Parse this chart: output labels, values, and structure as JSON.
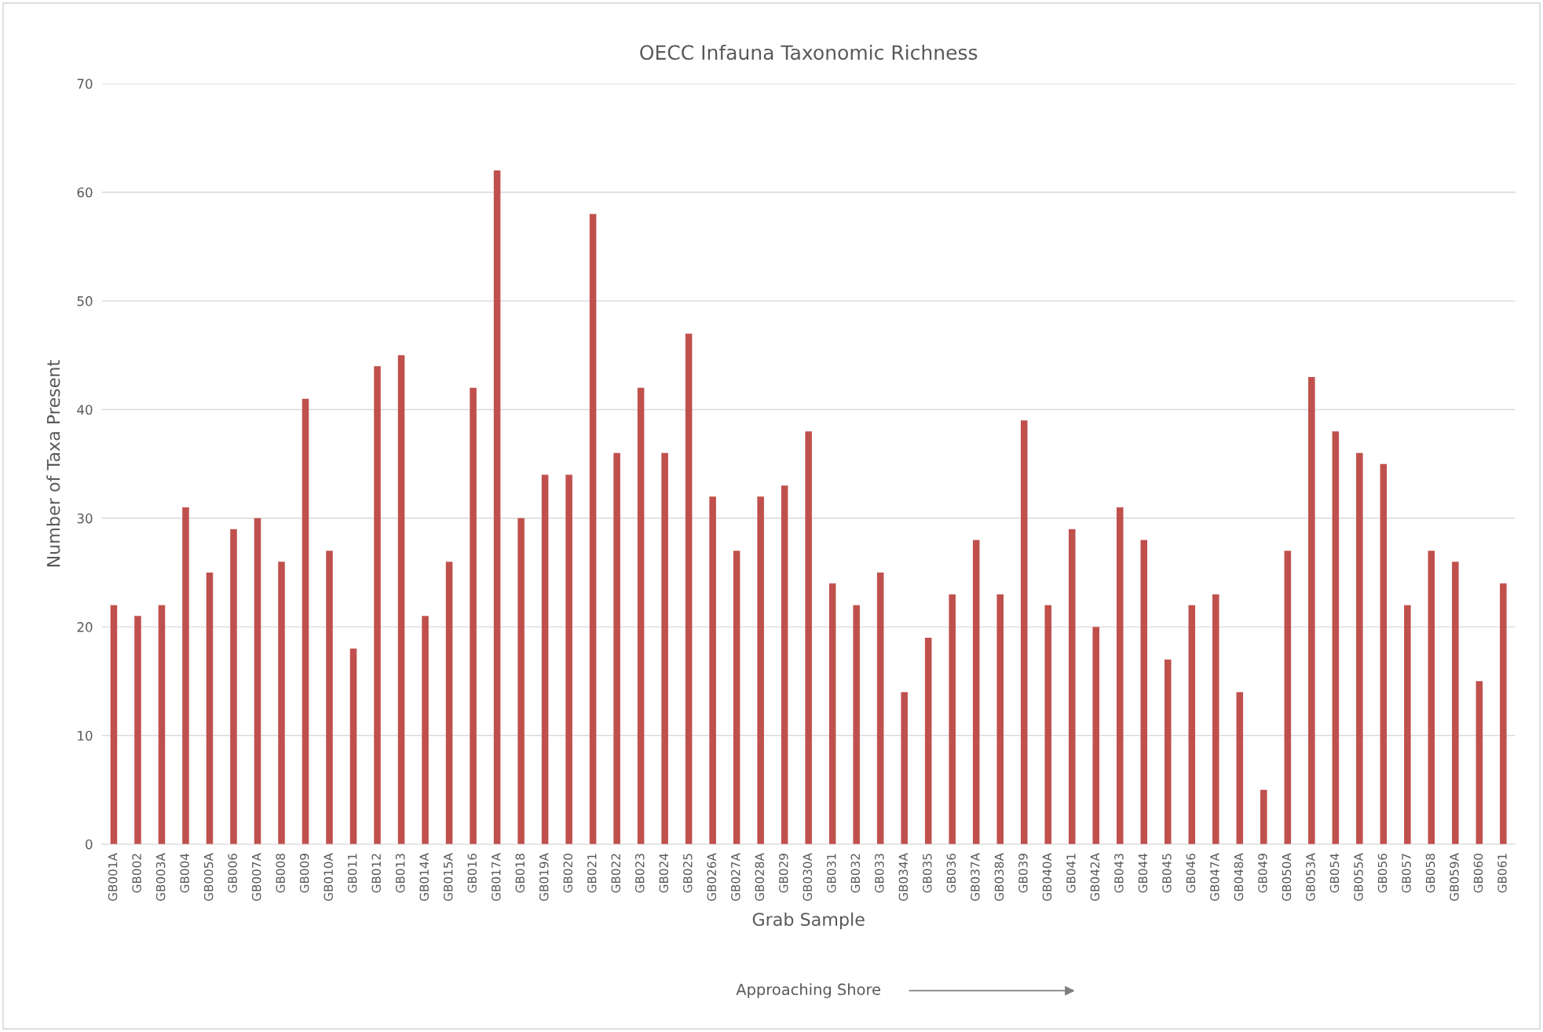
{
  "chart_data": {
    "type": "bar",
    "title": "OECC Infauna Taxonomic Richness",
    "xlabel": "Grab Sample",
    "ylabel": "Number of Taxa Present",
    "categories": [
      "GB001A",
      "GB002",
      "GB003A",
      "GB004",
      "GB005A",
      "GB006",
      "GB007A",
      "GB008",
      "GB009",
      "GB010A",
      "GB011",
      "GB012",
      "GB013",
      "GB014A",
      "GB015A",
      "GB016",
      "GB017A",
      "GB018",
      "GB019A",
      "GB020",
      "GB021",
      "GB022",
      "GB023",
      "GB024",
      "GB025",
      "GB026A",
      "GB027A",
      "GB028A",
      "GB029",
      "GB030A",
      "GB031",
      "GB032",
      "GB033",
      "GB034A",
      "GB035",
      "GB036",
      "GB037A",
      "GB038A",
      "GB039",
      "GB040A",
      "GB041",
      "GB042A",
      "GB043",
      "GB044",
      "GB045",
      "GB046",
      "GB047A",
      "GB048A",
      "GB049",
      "GB050A",
      "GB053A",
      "GB054",
      "GB055A",
      "GB056",
      "GB057",
      "GB058",
      "GB059A",
      "GB060",
      "GB061"
    ],
    "values": [
      22,
      21,
      22,
      31,
      25,
      29,
      30,
      26,
      41,
      27,
      18,
      44,
      45,
      21,
      26,
      42,
      62,
      30,
      34,
      34,
      58,
      36,
      42,
      36,
      47,
      32,
      27,
      32,
      33,
      38,
      24,
      22,
      25,
      14,
      19,
      23,
      28,
      23,
      39,
      22,
      29,
      20,
      31,
      28,
      17,
      22,
      23,
      14,
      5,
      27,
      43,
      38,
      36,
      35,
      22,
      27,
      26,
      15,
      24
    ],
    "color": "#c0504d",
    "ylim": [
      0,
      70
    ],
    "yticks": [
      0,
      10,
      20,
      30,
      40,
      50,
      60,
      70
    ],
    "grid": "y",
    "annotations": [
      "Approaching Shore"
    ]
  }
}
